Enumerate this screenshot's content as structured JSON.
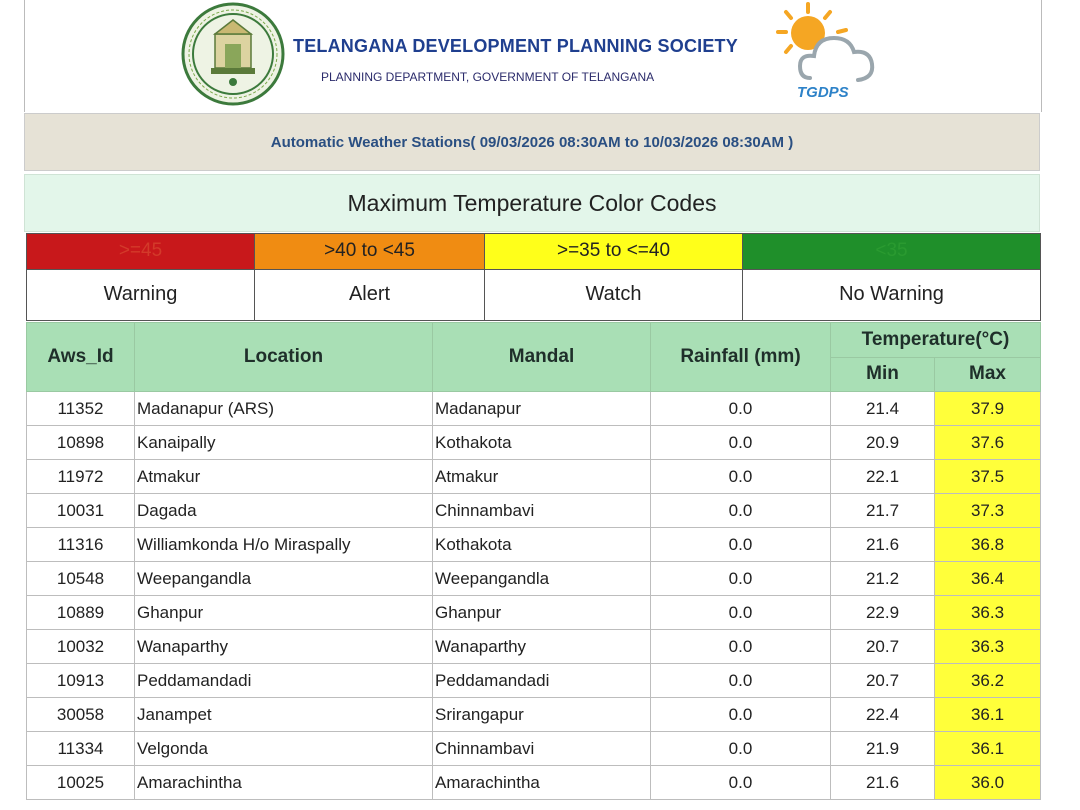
{
  "header": {
    "org_name": "TELANGANA DEVELOPMENT PLANNING SOCIETY",
    "dept_name": "PLANNING DEPARTMENT, GOVERNMENT OF TELANGANA",
    "logo_text": "TGDPS"
  },
  "period": {
    "text": "Automatic Weather Stations( 09/03/2026 08:30AM to 10/03/2026 08:30AM )"
  },
  "color_codes": {
    "title": "Maximum Temperature Color Codes",
    "items": [
      {
        "range": ">=45",
        "level": "Warning",
        "color": "#c8181b"
      },
      {
        "range": ">40 to <45",
        "level": "Alert",
        "color": "#f08c12"
      },
      {
        "range": ">=35 to <=40",
        "level": "Watch",
        "color": "#ffff1a"
      },
      {
        "range": "<35",
        "level": "No Warning",
        "color": "#1f8f2a"
      }
    ]
  },
  "table": {
    "headers": {
      "aws_id": "Aws_Id",
      "location": "Location",
      "mandal": "Mandal",
      "rainfall": "Rainfall (mm)",
      "temperature": "Temperature(°C)",
      "min": "Min",
      "max": "Max"
    },
    "rows": [
      {
        "aws_id": "11352",
        "location": "Madanapur (ARS)",
        "mandal": "Madanapur",
        "rainfall": "0.0",
        "min": "21.4",
        "max": "37.9"
      },
      {
        "aws_id": "10898",
        "location": "Kanaipally",
        "mandal": "Kothakota",
        "rainfall": "0.0",
        "min": "20.9",
        "max": "37.6"
      },
      {
        "aws_id": "11972",
        "location": "Atmakur",
        "mandal": "Atmakur",
        "rainfall": "0.0",
        "min": "22.1",
        "max": "37.5"
      },
      {
        "aws_id": "10031",
        "location": "Dagada",
        "mandal": "Chinnambavi",
        "rainfall": "0.0",
        "min": "21.7",
        "max": "37.3"
      },
      {
        "aws_id": "11316",
        "location": "Williamkonda H/o Miraspally",
        "mandal": "Kothakota",
        "rainfall": "0.0",
        "min": "21.6",
        "max": "36.8"
      },
      {
        "aws_id": "10548",
        "location": "Weepangandla",
        "mandal": "Weepangandla",
        "rainfall": "0.0",
        "min": "21.2",
        "max": "36.4"
      },
      {
        "aws_id": "10889",
        "location": "Ghanpur",
        "mandal": "Ghanpur",
        "rainfall": "0.0",
        "min": "22.9",
        "max": "36.3"
      },
      {
        "aws_id": "10032",
        "location": "Wanaparthy",
        "mandal": "Wanaparthy",
        "rainfall": "0.0",
        "min": "20.7",
        "max": "36.3"
      },
      {
        "aws_id": "10913",
        "location": "Peddamandadi",
        "mandal": "Peddamandadi",
        "rainfall": "0.0",
        "min": "20.7",
        "max": "36.2"
      },
      {
        "aws_id": "30058",
        "location": "Janampet",
        "mandal": "Srirangapur",
        "rainfall": "0.0",
        "min": "22.4",
        "max": "36.1"
      },
      {
        "aws_id": "11334",
        "location": "Velgonda",
        "mandal": "Chinnambavi",
        "rainfall": "0.0",
        "min": "21.9",
        "max": "36.1"
      },
      {
        "aws_id": "10025",
        "location": "Amarachintha",
        "mandal": "Amarachintha",
        "rainfall": "0.0",
        "min": "21.6",
        "max": "36.0"
      }
    ]
  }
}
